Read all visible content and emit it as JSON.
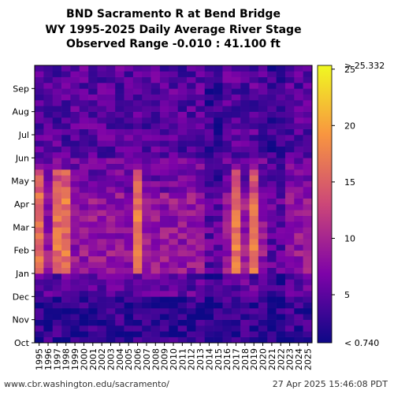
{
  "chart_data": {
    "type": "heatmap",
    "title_lines": [
      "BND Sacramento R at Bend Bridge",
      "WY 1995-2025 Daily Average River Stage",
      "Observed Range -0.010 : 41.100 ft"
    ],
    "x_categories": [
      "1995",
      "1996",
      "1997",
      "1998",
      "1999",
      "2000",
      "2001",
      "2002",
      "2003",
      "2004",
      "2005",
      "2006",
      "2007",
      "2008",
      "2009",
      "2010",
      "2011",
      "2012",
      "2013",
      "2014",
      "2015",
      "2016",
      "2017",
      "2018",
      "2019",
      "2020",
      "2021",
      "2022",
      "2023",
      "2024",
      "2025"
    ],
    "y_months": [
      "Oct",
      "Nov",
      "Dec",
      "Jan",
      "Feb",
      "Mar",
      "Apr",
      "May",
      "Jun",
      "Jul",
      "Aug",
      "Sep"
    ],
    "colorbar": {
      "ticks": [
        5,
        10,
        15,
        20,
        25
      ],
      "max_label": "> 25.332",
      "min_label": "< 0.740",
      "vmin": 0.74,
      "vmax": 25.332,
      "colormap": "plasma"
    },
    "wet_years": [
      "1995",
      "1997",
      "1998",
      "2006",
      "2017",
      "2019"
    ],
    "dry_years": [
      "2014",
      "2015",
      "2021",
      "2022"
    ]
  },
  "footer": {
    "left": "www.cbr.washington.edu/sacramento/",
    "right": "27 Apr 2025 15:46:08 PDT"
  }
}
